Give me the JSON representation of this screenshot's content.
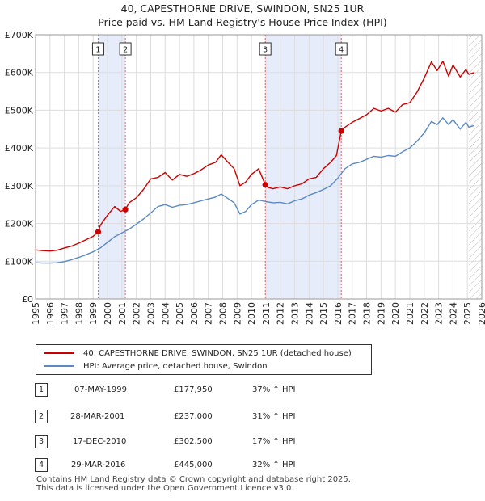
{
  "title_line1": "40, CAPESTHORNE DRIVE, SWINDON, SN25 1UR",
  "title_line2": "Price paid vs. HM Land Registry's House Price Index (HPI)",
  "chart_data": {
    "type": "line",
    "xlim": [
      1995,
      2026
    ],
    "ylim": [
      0,
      700000
    ],
    "yticks": [
      0,
      100000,
      200000,
      300000,
      400000,
      500000,
      600000,
      700000
    ],
    "ytick_labels": [
      "£0",
      "£100K",
      "£200K",
      "£300K",
      "£400K",
      "£500K",
      "£600K",
      "£700K"
    ],
    "xticks": [
      1995,
      1996,
      1997,
      1998,
      1999,
      2000,
      2001,
      2002,
      2003,
      2004,
      2005,
      2006,
      2007,
      2008,
      2009,
      2010,
      2011,
      2012,
      2013,
      2014,
      2015,
      2016,
      2017,
      2018,
      2019,
      2020,
      2021,
      2022,
      2023,
      2024,
      2025,
      2026
    ],
    "xtick_labels": [
      "1995",
      "1996",
      "1997",
      "1998",
      "1999",
      "2000",
      "2001",
      "2002",
      "2003",
      "2004",
      "2005",
      "2006",
      "2007",
      "2008",
      "2009",
      "2010",
      "2011",
      "2012",
      "2013",
      "2014",
      "2015",
      "2016",
      "2017",
      "2018",
      "2019",
      "2020",
      "2021",
      "2022",
      "2023",
      "2024",
      "2025",
      "2026"
    ],
    "grid": true,
    "future_hatch_start": 2025.1,
    "shaded_periods": [
      [
        1999.35,
        2001.24
      ],
      [
        2010.96,
        2016.24
      ]
    ],
    "series": [
      {
        "name": "40, CAPESTHORNE DRIVE, SWINDON, SN25 1UR (detached house)",
        "color": "#cc0000",
        "x": [
          1995,
          1995.5,
          1996,
          1996.5,
          1997,
          1997.5,
          1998,
          1998.5,
          1999.0,
          1999.35,
          1999.5,
          2000,
          2000.5,
          2000.9,
          2001.24,
          2001.5,
          2002,
          2002.5,
          2003,
          2003.5,
          2004,
          2004.5,
          2005,
          2005.5,
          2006,
          2006.5,
          2007,
          2007.5,
          2007.9,
          2008.3,
          2008.8,
          2009.2,
          2009.6,
          2010,
          2010.5,
          2010.96,
          2011.2,
          2011.5,
          2012,
          2012.5,
          2013,
          2013.5,
          2014,
          2014.5,
          2015,
          2015.5,
          2015.9,
          2016.24,
          2016.5,
          2017,
          2017.5,
          2018,
          2018.5,
          2019,
          2019.5,
          2020,
          2020.5,
          2021,
          2021.5,
          2022,
          2022.5,
          2022.9,
          2023.3,
          2023.7,
          2024,
          2024.5,
          2024.9,
          2025.1,
          2025.5
        ],
        "values": [
          130000,
          128000,
          127000,
          129000,
          135000,
          140000,
          148000,
          157000,
          166000,
          177950,
          195000,
          222000,
          245000,
          232000,
          237000,
          255000,
          268000,
          290000,
          318000,
          322000,
          335000,
          315000,
          330000,
          325000,
          332000,
          342000,
          355000,
          362000,
          382000,
          365000,
          345000,
          300000,
          310000,
          330000,
          345000,
          302500,
          295000,
          292000,
          297000,
          292000,
          300000,
          305000,
          318000,
          322000,
          345000,
          362000,
          380000,
          445000,
          455000,
          468000,
          478000,
          488000,
          505000,
          498000,
          505000,
          495000,
          515000,
          520000,
          548000,
          585000,
          628000,
          605000,
          630000,
          590000,
          620000,
          588000,
          608000,
          595000,
          600000
        ]
      },
      {
        "name": "HPI: Average price, detached house, Swindon",
        "color": "#5a8ac6",
        "x": [
          1995,
          1995.5,
          1996,
          1996.5,
          1997,
          1997.5,
          1998,
          1998.5,
          1999,
          1999.5,
          2000,
          2000.5,
          2001,
          2001.5,
          2002,
          2002.5,
          2003,
          2003.5,
          2004,
          2004.5,
          2005,
          2005.5,
          2006,
          2006.5,
          2007,
          2007.5,
          2007.9,
          2008.3,
          2008.8,
          2009.2,
          2009.6,
          2010,
          2010.5,
          2011,
          2011.5,
          2012,
          2012.5,
          2013,
          2013.5,
          2014,
          2014.5,
          2015,
          2015.5,
          2016,
          2016.5,
          2017,
          2017.5,
          2018,
          2018.5,
          2019,
          2019.5,
          2020,
          2020.5,
          2021,
          2021.5,
          2022,
          2022.5,
          2022.9,
          2023.3,
          2023.7,
          2024,
          2024.5,
          2024.9,
          2025.1,
          2025.5
        ],
        "values": [
          96000,
          95000,
          95000,
          96000,
          99000,
          104000,
          110000,
          117000,
          125000,
          135000,
          150000,
          165000,
          175000,
          185000,
          198000,
          212000,
          228000,
          245000,
          250000,
          243000,
          248000,
          250000,
          255000,
          260000,
          265000,
          270000,
          278000,
          268000,
          255000,
          225000,
          232000,
          250000,
          262000,
          258000,
          255000,
          256000,
          252000,
          260000,
          265000,
          275000,
          282000,
          290000,
          300000,
          320000,
          345000,
          358000,
          362000,
          370000,
          378000,
          376000,
          380000,
          378000,
          390000,
          400000,
          418000,
          440000,
          470000,
          462000,
          480000,
          462000,
          475000,
          450000,
          468000,
          455000,
          460000
        ]
      }
    ],
    "sale_points": [
      {
        "label": "1",
        "x": 1999.35,
        "value": 177950
      },
      {
        "label": "2",
        "x": 2001.24,
        "value": 237000
      },
      {
        "label": "3",
        "x": 2010.96,
        "value": 302500
      },
      {
        "label": "4",
        "x": 2016.24,
        "value": 445000
      }
    ]
  },
  "legend": {
    "property": "40, CAPESTHORNE DRIVE, SWINDON, SN25 1UR (detached house)",
    "hpi": "HPI: Average price, detached house, Swindon",
    "property_color": "#cc0000",
    "hpi_color": "#5a8ac6"
  },
  "sales": [
    {
      "num": "1",
      "date": "07-MAY-1999",
      "price": "£177,950",
      "hpi": "37% ↑ HPI"
    },
    {
      "num": "2",
      "date": "28-MAR-2001",
      "price": "£237,000",
      "hpi": "31% ↑ HPI"
    },
    {
      "num": "3",
      "date": "17-DEC-2010",
      "price": "£302,500",
      "hpi": "17% ↑ HPI"
    },
    {
      "num": "4",
      "date": "29-MAR-2016",
      "price": "£445,000",
      "hpi": "32% ↑ HPI"
    }
  ],
  "footer_line1": "Contains HM Land Registry data © Crown copyright and database right 2025.",
  "footer_line2": "This data is licensed under the Open Government Licence v3.0."
}
